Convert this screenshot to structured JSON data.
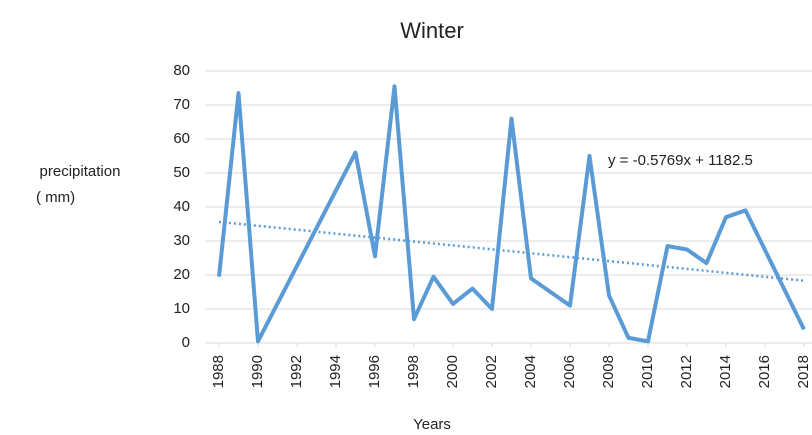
{
  "chart_data": {
    "type": "line",
    "title": "Winter",
    "ylabel": [
      "precipitation",
      "( mm)"
    ],
    "xlabel": "Years",
    "x": [
      1988,
      1989,
      1990,
      1995,
      1996,
      1997,
      1998,
      1999,
      2000,
      2001,
      2002,
      2003,
      2004,
      2006,
      2007,
      2008,
      2009,
      2010,
      2011,
      2012,
      2013,
      2014,
      2015,
      2018
    ],
    "series": [
      {
        "name": "Winter",
        "color": "#5b9bd5",
        "values": [
          19.5,
          73.5,
          0.5,
          56,
          25.5,
          75.5,
          7,
          19.5,
          11.5,
          16,
          10,
          66,
          19,
          11,
          55,
          14,
          1.5,
          0.5,
          28.5,
          27.5,
          23.5,
          37,
          39,
          4
        ]
      }
    ],
    "trendline": {
      "slope": -0.5769,
      "intercept": 1182.5,
      "label": "y = -0.5769x + 1182.5",
      "color": "#5b9bd5"
    },
    "xlim": [
      1988,
      2018
    ],
    "xticks": [
      1988,
      1990,
      1992,
      1994,
      1996,
      1998,
      2000,
      2002,
      2004,
      2006,
      2008,
      2010,
      2012,
      2014,
      2016,
      2018
    ],
    "ylim": [
      0,
      80
    ],
    "yticks": [
      0,
      10,
      20,
      30,
      40,
      50,
      60,
      70,
      80
    ],
    "grid": true
  }
}
